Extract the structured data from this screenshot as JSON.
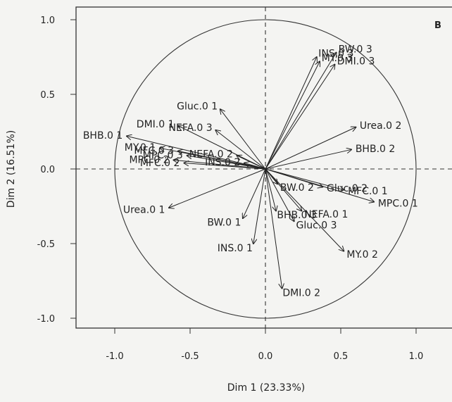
{
  "chart_data": {
    "type": "scatter",
    "subtype": "pca-correlation-circle",
    "panel_label": "B",
    "xlabel": "Dim 1 (23.33%)",
    "ylabel": "Dim 2 (16.51%)",
    "xlim": [
      -1.25,
      1.1
    ],
    "ylim": [
      -1.1,
      1.07
    ],
    "x_ticks": [
      -1.0,
      -0.5,
      0.0,
      0.5,
      1.0
    ],
    "x_tick_labels": [
      "-1.0",
      "-0.5",
      "0.0",
      "0.5",
      "1.0"
    ],
    "y_ticks": [
      -1.0,
      -0.5,
      0.0,
      0.5,
      1.0
    ],
    "y_tick_labels": [
      "-1.0",
      "-0.5",
      "0.0",
      "0.5",
      "1.0"
    ],
    "grid": false,
    "unit_circle": true,
    "reference_lines": "dashed lines at x=0 and y=0",
    "vectors": [
      {
        "label": "INS.0 3",
        "x": 0.34,
        "y": 0.75
      },
      {
        "label": "BW.0 3",
        "x": 0.47,
        "y": 0.78
      },
      {
        "label": "MY.0 3",
        "x": 0.36,
        "y": 0.72
      },
      {
        "label": "DMI.0 3",
        "x": 0.46,
        "y": 0.7
      },
      {
        "label": "Gluc.0 1",
        "x": -0.3,
        "y": 0.4
      },
      {
        "label": "DMI.0 1",
        "x": -0.58,
        "y": 0.29
      },
      {
        "label": "NEFA.0 3",
        "x": -0.33,
        "y": 0.26
      },
      {
        "label": "BHB.0 1",
        "x": -0.92,
        "y": 0.22
      },
      {
        "label": "NEFA.0 2",
        "x": -0.19,
        "y": 0.09
      },
      {
        "label": "MY.0 1",
        "x": -0.7,
        "y": 0.14
      },
      {
        "label": "MFC.0 3",
        "x": -0.58,
        "y": 0.12
      },
      {
        "label": "MPC.0 3",
        "x": -0.52,
        "y": 0.09
      },
      {
        "label": "INS.0 2",
        "x": -0.14,
        "y": 0.04
      },
      {
        "label": "MPC.0 2",
        "x": -0.61,
        "y": 0.06
      },
      {
        "label": "MFC.0 2",
        "x": -0.54,
        "y": 0.04
      },
      {
        "label": "Urea.0 2",
        "x": 0.6,
        "y": 0.28
      },
      {
        "label": "BHB.0 2",
        "x": 0.57,
        "y": 0.13
      },
      {
        "label": "BW.0 2",
        "x": 0.08,
        "y": -0.1
      },
      {
        "label": "Gluc.0 2",
        "x": 0.38,
        "y": -0.12
      },
      {
        "label": "MFC.0 1",
        "x": 0.52,
        "y": -0.14
      },
      {
        "label": "MPC.0 1",
        "x": 0.72,
        "y": -0.22
      },
      {
        "label": "Urea.0 1",
        "x": -0.64,
        "y": -0.26
      },
      {
        "label": "BHB.0 3",
        "x": 0.07,
        "y": -0.28
      },
      {
        "label": "NEFA.0 1",
        "x": 0.24,
        "y": -0.28
      },
      {
        "label": "BW.0 1",
        "x": -0.15,
        "y": -0.33
      },
      {
        "label": "Gluc.0 3",
        "x": 0.19,
        "y": -0.35
      },
      {
        "label": "INS.0 1",
        "x": -0.08,
        "y": -0.5
      },
      {
        "label": "MY.0 2",
        "x": 0.52,
        "y": -0.55
      },
      {
        "label": "DMI.0 2",
        "x": 0.11,
        "y": -0.8
      }
    ]
  },
  "colors": {
    "background": "#f4f4f2",
    "ink": "#222222"
  }
}
